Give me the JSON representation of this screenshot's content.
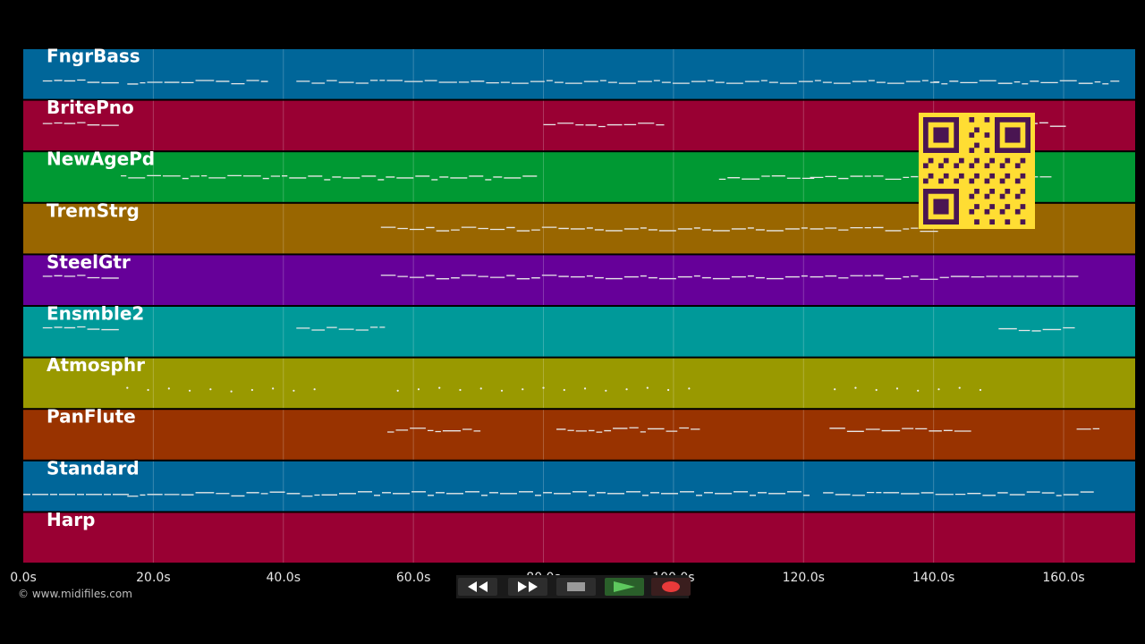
{
  "tracks": [
    {
      "name": "FngrBass",
      "color": "#006699"
    },
    {
      "name": "BritePno",
      "color": "#990033"
    },
    {
      "name": "NewAgePd",
      "color": "#009933"
    },
    {
      "name": "TremStrg",
      "color": "#996600"
    },
    {
      "name": "SteelGtr",
      "color": "#660099"
    },
    {
      "name": "Ensmble2",
      "color": "#009999"
    },
    {
      "name": "Atmosphr",
      "color": "#999900"
    },
    {
      "name": "PanFlute",
      "color": "#993300"
    },
    {
      "name": "Standard",
      "color": "#006699"
    },
    {
      "name": "Harp",
      "color": "#990033"
    }
  ],
  "timeline": {
    "max_seconds": 171,
    "tick_step": 20,
    "ticks": [
      "0.0s",
      "20.0s",
      "40.0s",
      "60.0s",
      "80.0s",
      "100.0s",
      "120.0s",
      "140.0s",
      "160.0s"
    ]
  },
  "footer": {
    "copyright": "© www.midifiles.com"
  },
  "transport": {
    "rewind_icon": "rewind-icon",
    "fast_forward_icon": "fast-forward-icon",
    "stop_icon": "stop-icon",
    "play_icon": "play-icon",
    "record_icon": "record-icon"
  },
  "overlay": {
    "qr_icon": "qr-code-icon",
    "qr_color": "#ffdd33"
  }
}
